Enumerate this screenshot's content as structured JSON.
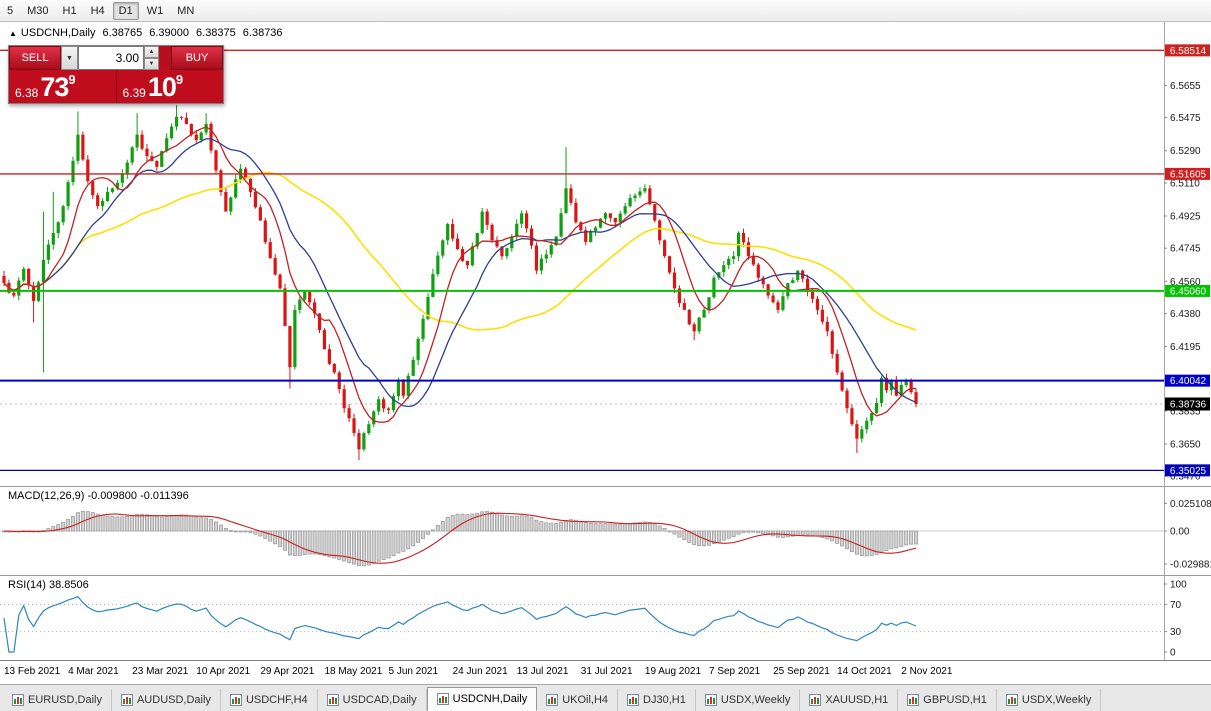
{
  "icons": {
    "collapse_arrow": "▲",
    "caret_down": "▼",
    "spinner_up": "▲",
    "spinner_down": "▼"
  },
  "toolbar": {
    "timeframes": [
      {
        "label": "5",
        "active": false
      },
      {
        "label": "M30",
        "active": false
      },
      {
        "label": "H1",
        "active": false
      },
      {
        "label": "H4",
        "active": false
      },
      {
        "label": "D1",
        "active": true
      },
      {
        "label": "W1",
        "active": false
      },
      {
        "label": "MN",
        "active": false
      }
    ]
  },
  "chart_header": {
    "symbol": "USDCNH,Daily",
    "open": "6.38765",
    "high": "6.39000",
    "low": "6.38375",
    "close": "6.38736"
  },
  "trade_panel": {
    "sell_label": "SELL",
    "buy_label": "BUY",
    "volume": "3.00",
    "sell_price": {
      "prefix": "6.38",
      "big": "73",
      "sup": "9"
    },
    "buy_price": {
      "prefix": "6.39",
      "big": "10",
      "sup": "9"
    }
  },
  "chart_data": {
    "type": "candlestick",
    "symbol": "USDCNH",
    "timeframe": "Daily",
    "title": "USDCNH,Daily",
    "y_axis": {
      "min": 6.3415,
      "max": 6.601
    },
    "price_ticks": [
      "6.5655",
      "6.5475",
      "6.5290",
      "6.5110",
      "6.4925",
      "6.4745",
      "6.4560",
      "6.4380",
      "6.4195",
      "6.4015",
      "6.3835",
      "6.3650",
      "6.3470"
    ],
    "h_lines": [
      {
        "value": 6.58514,
        "label": "6.58514",
        "color": "#cc2222",
        "width": 1.4
      },
      {
        "value": 6.51605,
        "label": "6.51605",
        "color": "#cc2222",
        "width": 1.4
      },
      {
        "value": 6.4506,
        "label": "6.45060",
        "color": "#00c400",
        "width": 2
      },
      {
        "value": 6.40042,
        "label": "6.40042",
        "color": "#0000cc",
        "width": 2
      },
      {
        "value": 6.35025,
        "label": "6.35025",
        "color": "#0000bb",
        "width": 1.2
      }
    ],
    "last_price": {
      "value": 6.38736,
      "label": "6.38736"
    },
    "bars": 186,
    "seed": 7,
    "noise": 0.0022,
    "wick": 0.003,
    "up_color": "#0fa00f",
    "down_color": "#dd1414",
    "anchors": [
      [
        0,
        6.455
      ],
      [
        2,
        6.448
      ],
      [
        4,
        6.463
      ],
      [
        6,
        6.445
      ],
      [
        8,
        6.468
      ],
      [
        10,
        6.483
      ],
      [
        12,
        6.498
      ],
      [
        15,
        6.538
      ],
      [
        17,
        6.512
      ],
      [
        19,
        6.498
      ],
      [
        21,
        6.506
      ],
      [
        24,
        6.516
      ],
      [
        27,
        6.538
      ],
      [
        29,
        6.526
      ],
      [
        31,
        6.52
      ],
      [
        33,
        6.536
      ],
      [
        35,
        6.548
      ],
      [
        37,
        6.544
      ],
      [
        39,
        6.535
      ],
      [
        41,
        6.544
      ],
      [
        43,
        6.518
      ],
      [
        45,
        6.495
      ],
      [
        48,
        6.519
      ],
      [
        50,
        6.506
      ],
      [
        52,
        6.49
      ],
      [
        54,
        6.469
      ],
      [
        56,
        6.452
      ],
      [
        57,
        6.431
      ],
      [
        58,
        6.408
      ],
      [
        59,
        6.44
      ],
      [
        61,
        6.45
      ],
      [
        63,
        6.438
      ],
      [
        65,
        6.418
      ],
      [
        67,
        6.405
      ],
      [
        69,
        6.385
      ],
      [
        72,
        6.362
      ],
      [
        74,
        6.376
      ],
      [
        76,
        6.39
      ],
      [
        78,
        6.384
      ],
      [
        80,
        6.401
      ],
      [
        81,
        6.392
      ],
      [
        83,
        6.412
      ],
      [
        85,
        6.435
      ],
      [
        87,
        6.46
      ],
      [
        90,
        6.488
      ],
      [
        92,
        6.474
      ],
      [
        94,
        6.465
      ],
      [
        96,
        6.483
      ],
      [
        97,
        6.495
      ],
      [
        99,
        6.479
      ],
      [
        101,
        6.47
      ],
      [
        103,
        6.481
      ],
      [
        105,
        6.494
      ],
      [
        107,
        6.476
      ],
      [
        108,
        6.462
      ],
      [
        110,
        6.471
      ],
      [
        112,
        6.481
      ],
      [
        114,
        6.508
      ],
      [
        116,
        6.489
      ],
      [
        118,
        6.478
      ],
      [
        120,
        6.486
      ],
      [
        122,
        6.494
      ],
      [
        124,
        6.489
      ],
      [
        126,
        6.498
      ],
      [
        128,
        6.504
      ],
      [
        130,
        6.508
      ],
      [
        132,
        6.49
      ],
      [
        134,
        6.47
      ],
      [
        136,
        6.452
      ],
      [
        138,
        6.44
      ],
      [
        140,
        6.428
      ],
      [
        142,
        6.44
      ],
      [
        144,
        6.458
      ],
      [
        146,
        6.465
      ],
      [
        148,
        6.47
      ],
      [
        149,
        6.483
      ],
      [
        151,
        6.47
      ],
      [
        153,
        6.458
      ],
      [
        155,
        6.448
      ],
      [
        157,
        6.44
      ],
      [
        159,
        6.455
      ],
      [
        161,
        6.462
      ],
      [
        163,
        6.45
      ],
      [
        165,
        6.44
      ],
      [
        167,
        6.428
      ],
      [
        169,
        6.405
      ],
      [
        171,
        6.385
      ],
      [
        173,
        6.368
      ],
      [
        175,
        6.378
      ],
      [
        177,
        6.388
      ],
      [
        178,
        6.402
      ],
      [
        179,
        6.395
      ],
      [
        180,
        6.4
      ],
      [
        181,
        6.392
      ],
      [
        182,
        6.398
      ],
      [
        183,
        6.4
      ],
      [
        184,
        6.394
      ],
      [
        185,
        6.38736
      ]
    ],
    "wick_high": [
      [
        8,
        6.495
      ],
      [
        10,
        6.506
      ],
      [
        15,
        6.551
      ],
      [
        27,
        6.55
      ],
      [
        35,
        6.5545
      ],
      [
        41,
        6.55
      ],
      [
        114,
        6.531
      ]
    ],
    "wick_low": [
      [
        6,
        6.433
      ],
      [
        8,
        6.405
      ],
      [
        58,
        6.396
      ],
      [
        72,
        6.356
      ],
      [
        140,
        6.423
      ],
      [
        173,
        6.36
      ]
    ],
    "overlays": [
      {
        "name": "ma-fast",
        "period": 8,
        "color": "#c32222"
      },
      {
        "name": "ma-mid",
        "period": 16,
        "color": "#2b3f96"
      },
      {
        "name": "ma-slow",
        "period": 45,
        "color": "#ffdf00"
      }
    ],
    "x_dates": [
      "13 Feb 2021",
      "4 Mar 2021",
      "23 Mar 2021",
      "10 Apr 2021",
      "29 Apr 2021",
      "18 May 2021",
      "5 Jun 2021",
      "24 Jun 2021",
      "13 Jul 2021",
      "31 Jul 2021",
      "19 Aug 2021",
      "7 Sep 2021",
      "25 Sep 2021",
      "14 Oct 2021",
      "2 Nov 2021"
    ],
    "date_step_bars": 13
  },
  "macd": {
    "label": "MACD(12,26,9) -0.009800 -0.011396",
    "fast": 12,
    "slow": 26,
    "signal": 9,
    "ticks": [
      "0.025108",
      "0.00",
      "-0.029881"
    ],
    "hist_fill": "#d2d2d2",
    "hist_stroke": "#9a9a9a",
    "signal_color": "#cc2020"
  },
  "rsi": {
    "label": "RSI(14) 38.8506",
    "period": 14,
    "ticks": [
      "100",
      "70",
      "30",
      "0"
    ],
    "levels": [
      70,
      30
    ],
    "line_color": "#2e86c1"
  },
  "tabs": [
    {
      "label": "EURUSD,Daily",
      "active": false
    },
    {
      "label": "AUDUSD,Daily",
      "active": false
    },
    {
      "label": "USDCHF,H4",
      "active": false
    },
    {
      "label": "USDCAD,Daily",
      "active": false
    },
    {
      "label": "USDCNH,Daily",
      "active": true
    },
    {
      "label": "UKOil,H4",
      "active": false
    },
    {
      "label": "DJ30,H1",
      "active": false
    },
    {
      "label": "USDX,Weekly",
      "active": false
    },
    {
      "label": "XAUUSD,H1",
      "active": false
    },
    {
      "label": "GBPUSD,H1",
      "active": false
    },
    {
      "label": "USDX,Weekly",
      "active": false
    }
  ]
}
